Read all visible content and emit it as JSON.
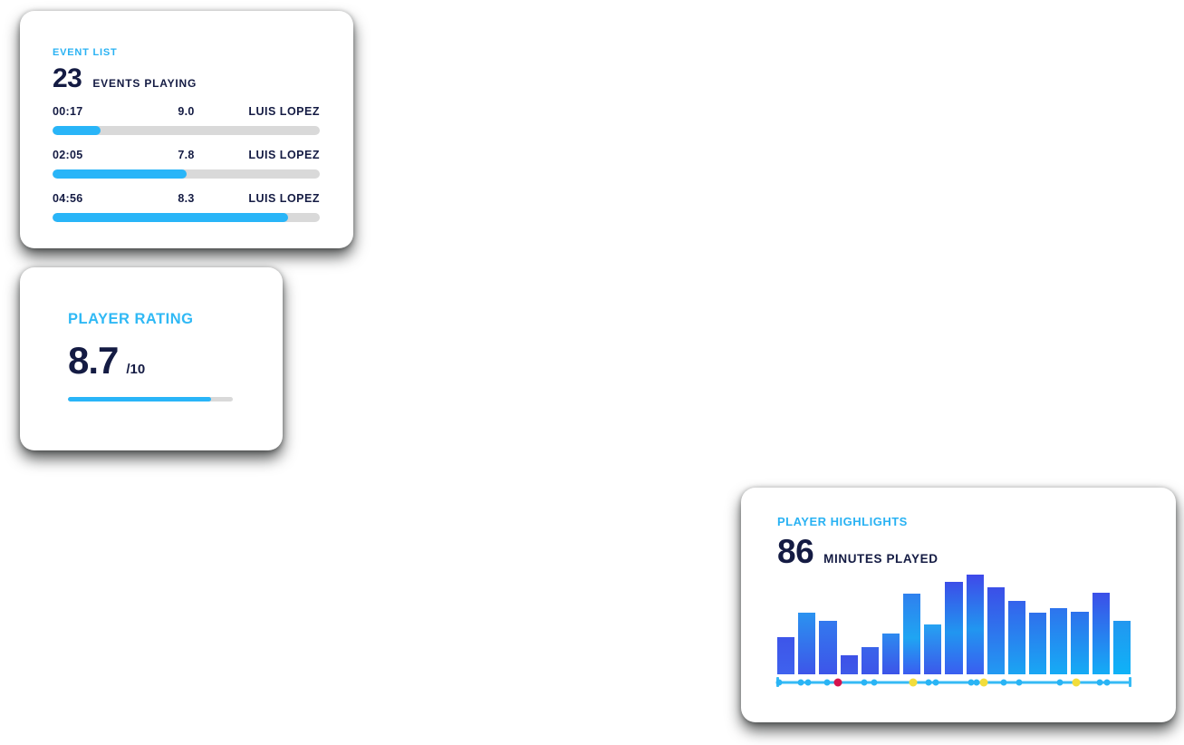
{
  "page": {
    "background": "#ffffff"
  },
  "colors": {
    "accent_cyan": "#29b2f3",
    "navy_text": "#141b43",
    "progress_fill": "#29b5f8",
    "progress_track": "#d9d9d9",
    "timeline_line": "#35baf5",
    "dot_cyan": "#29b4f5",
    "dot_red": "#d6134e",
    "dot_yellow": "#f2dd3c"
  },
  "event_list_card": {
    "title": "EVENT LIST",
    "stat_value": "23",
    "stat_label": "EVENTS PLAYING",
    "events": [
      {
        "time": "00:17",
        "rating": "9.0",
        "player": "LUIS LOPEZ",
        "progress_pct": 18
      },
      {
        "time": "02:05",
        "rating": "7.8",
        "player": "LUIS LOPEZ",
        "progress_pct": 50
      },
      {
        "time": "04:56",
        "rating": "8.3",
        "player": "LUIS LOPEZ",
        "progress_pct": 88
      }
    ]
  },
  "player_rating_card": {
    "title": "PLAYER RATING",
    "rating_value": "8.7",
    "rating_denominator": "/10",
    "progress_pct": 87
  },
  "player_highlights_card": {
    "title": "PLAYER HIGHLIGHTS",
    "stat_value": "86",
    "stat_label": "MINUTES PLAYED"
  },
  "chart_data": {
    "type": "bar",
    "title": "PLAYER HIGHLIGHTS",
    "xlabel": "",
    "ylabel": "",
    "note": "unlabeled highlight-intensity bars; values are percent of tallest bar",
    "values": [
      37,
      62,
      54,
      19,
      27,
      41,
      81,
      50,
      93,
      100,
      87,
      74,
      62,
      66,
      63,
      82,
      54
    ],
    "bar_gradients": [
      [
        "#3d55e9",
        "#3f62ee"
      ],
      [
        "#2b93f0",
        "#3d55e9"
      ],
      [
        "#3379ee",
        "#3d55e9"
      ],
      [
        "#3d51e7",
        "#3f5ae9"
      ],
      [
        "#3a64ea",
        "#3d55e9"
      ],
      [
        "#2d8af0",
        "#3d53e8"
      ],
      [
        "#2f80ee",
        "#1fa5f2",
        "#3a5cf0"
      ],
      [
        "#25a3f2",
        "#3c58ea"
      ],
      [
        "#3b4ee8",
        "#2196f0",
        "#3a5ef0"
      ],
      [
        "#3f49e9",
        "#2196f0",
        "#3a5ef0"
      ],
      [
        "#3b4fe8",
        "#229af2"
      ],
      [
        "#3562ec",
        "#1ba5f3"
      ],
      [
        "#2f70ec",
        "#19a7f4"
      ],
      [
        "#2e74ed",
        "#16abf5"
      ],
      [
        "#2e72ec",
        "#15abf5"
      ],
      [
        "#3c4fe8",
        "#14adf6"
      ],
      [
        "#2297f0",
        "#0fb2f7"
      ]
    ],
    "timeline_dots": [
      {
        "pos_pct": 0.5,
        "color": "cyan"
      },
      {
        "pos_pct": 6.7,
        "color": "cyan"
      },
      {
        "pos_pct": 8.7,
        "color": "cyan"
      },
      {
        "pos_pct": 14.1,
        "color": "cyan"
      },
      {
        "pos_pct": 17.2,
        "color": "red"
      },
      {
        "pos_pct": 24.6,
        "color": "cyan"
      },
      {
        "pos_pct": 27.4,
        "color": "cyan"
      },
      {
        "pos_pct": 38.5,
        "color": "yellow"
      },
      {
        "pos_pct": 42.8,
        "color": "cyan"
      },
      {
        "pos_pct": 44.9,
        "color": "cyan"
      },
      {
        "pos_pct": 54.9,
        "color": "cyan"
      },
      {
        "pos_pct": 56.4,
        "color": "cyan"
      },
      {
        "pos_pct": 58.5,
        "color": "yellow"
      },
      {
        "pos_pct": 64.1,
        "color": "cyan"
      },
      {
        "pos_pct": 68.5,
        "color": "cyan"
      },
      {
        "pos_pct": 80.0,
        "color": "cyan"
      },
      {
        "pos_pct": 84.6,
        "color": "yellow"
      },
      {
        "pos_pct": 91.3,
        "color": "cyan"
      },
      {
        "pos_pct": 93.3,
        "color": "cyan"
      }
    ]
  }
}
